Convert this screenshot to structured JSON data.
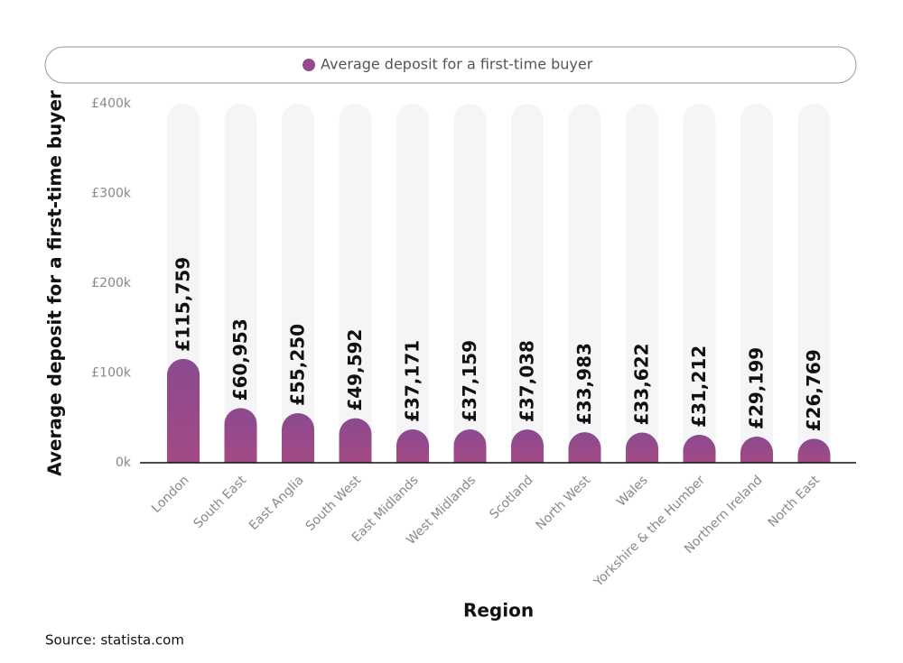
{
  "chart_data": {
    "type": "bar",
    "y_label": "Average deposit for a first-time buyer",
    "x_label": "Region",
    "source": "Source: statista.com",
    "categories": [
      "London",
      "South East",
      "East Anglia",
      "South West",
      "East Midlands",
      "West Midlands",
      "Scotland",
      "North West",
      "Wales",
      "Yorkshire & the Humber",
      "Northern Ireland",
      "North East"
    ],
    "series": [
      {
        "name": "Average deposit for a first-time buyer",
        "color": "#944a8c",
        "values": [
          115759,
          60953,
          55250,
          49592,
          37171,
          37159,
          37038,
          33983,
          33622,
          31212,
          29199,
          26769
        ],
        "value_labels": [
          "£115,759",
          "£60,953",
          "£55,250",
          "£49,592",
          "£37,171",
          "£37,159",
          "£37,038",
          "£33,983",
          "£33,622",
          "£31,212",
          "£29,199",
          "£26,769"
        ]
      }
    ],
    "ylim": [
      0,
      400000
    ],
    "yticks": [
      {
        "value": 0,
        "label": "0k"
      },
      {
        "value": 100000,
        "label": "£100k"
      },
      {
        "value": 200000,
        "label": "£200k"
      },
      {
        "value": 300000,
        "label": "£300k"
      },
      {
        "value": 400000,
        "label": "£400k"
      }
    ],
    "grid": false
  }
}
